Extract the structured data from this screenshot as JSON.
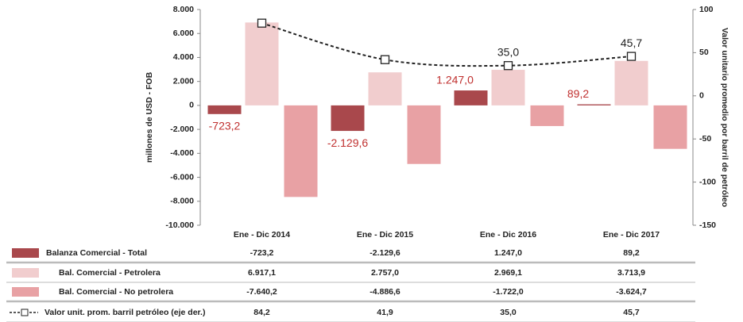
{
  "chart_data": {
    "type": "bar",
    "categories": [
      "Ene - Dic 2014",
      "Ene - Dic 2015",
      "Ene - Dic 2016",
      "Ene - Dic 2017"
    ],
    "ylabel": "millones de USD - FOB",
    "y2label": "Valor unitario promedio por barril de petróleo",
    "ylim": [
      -10000,
      8000
    ],
    "yticks": [
      {
        "value": -10000,
        "label": "-10.000"
      },
      {
        "value": -8000,
        "label": "-8.000"
      },
      {
        "value": -6000,
        "label": "-6.000"
      },
      {
        "value": -4000,
        "label": "-4.000"
      },
      {
        "value": -2000,
        "label": "-2.000"
      },
      0,
      {
        "value": 2000,
        "label": "2.000"
      },
      {
        "value": 4000,
        "label": "4.000"
      },
      {
        "value": 6000,
        "label": "6.000"
      },
      {
        "value": 8000,
        "label": "8.000"
      }
    ],
    "y2lim": [
      -150,
      100
    ],
    "y2ticks": [
      -150,
      -100,
      -50,
      0,
      50,
      100
    ],
    "series": [
      {
        "name": "Balanza Comercial - Total",
        "color": "#a9484c",
        "values": [
          -723.2,
          -2129.6,
          1247.0,
          89.2
        ],
        "value_labels": [
          "-723,2",
          "-2.129,6",
          "1.247,0",
          "89,2"
        ]
      },
      {
        "name": "Bal. Comercial - Petrolera",
        "color": "#f1cdce",
        "values": [
          6917.1,
          2757.0,
          2969.1,
          3713.9
        ]
      },
      {
        "name": "Bal. Comercial - No petrolera",
        "color": "#e8a1a4",
        "values": [
          -7640.2,
          -4886.6,
          -1722.0,
          -3624.7
        ]
      },
      {
        "name": "Valor unit. prom. barril petróleo (eje der.)",
        "type": "line",
        "axis": "y2",
        "color": "#222222",
        "values": [
          84.2,
          41.9,
          35.0,
          45.7
        ],
        "value_labels": [
          null,
          null,
          "35,0",
          "45,7"
        ]
      }
    ]
  },
  "table": {
    "rows": [
      [
        "-723,2",
        "-2.129,6",
        "1.247,0",
        "89,2"
      ],
      [
        "6.917,1",
        "2.757,0",
        "2.969,1",
        "3.713,9"
      ],
      [
        "-7.640,2",
        "-4.886,6",
        "-1.722,0",
        "-3.624,7"
      ],
      [
        "84,2",
        "41,9",
        "35,0",
        "45,7"
      ]
    ]
  }
}
